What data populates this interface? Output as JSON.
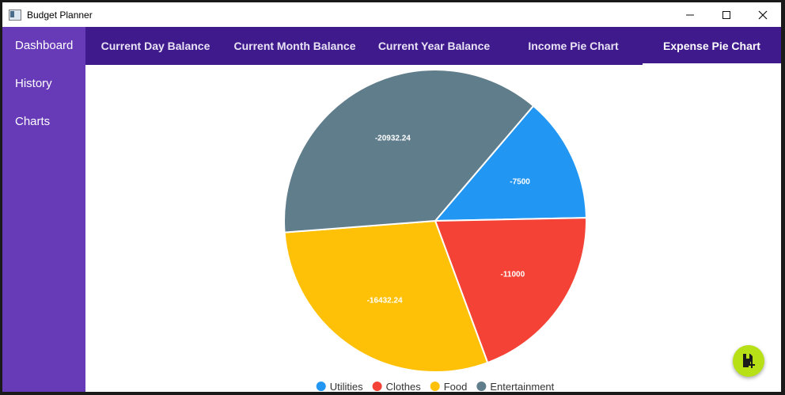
{
  "window": {
    "title": "Budget Planner",
    "minimize_glyph": "—",
    "maximize_glyph": "☐",
    "close_glyph": "✕"
  },
  "sidebar": {
    "items": [
      {
        "label": "Dashboard"
      },
      {
        "label": "History"
      },
      {
        "label": "Charts"
      }
    ]
  },
  "tabs": [
    {
      "label": "Current Day Balance"
    },
    {
      "label": "Current Month Balance"
    },
    {
      "label": "Current Year Balance"
    },
    {
      "label": "Income Pie Chart"
    },
    {
      "label": "Expense Pie Chart",
      "active": true
    }
  ],
  "fab": {
    "icon": "add-document-icon"
  },
  "chart_data": {
    "type": "pie",
    "title": "",
    "slices": [
      {
        "name": "Utilities",
        "value": -7500,
        "color": "#2196f3",
        "label": "-7500"
      },
      {
        "name": "Clothes",
        "value": -11000,
        "color": "#f44336",
        "label": "-11000"
      },
      {
        "name": "Food",
        "value": -16432.24,
        "color": "#ffc107",
        "label": "-16432.24"
      },
      {
        "name": "Entertainment",
        "value": -20932.24,
        "color": "#607d8b",
        "label": "-20932.24"
      }
    ],
    "legend_position": "bottom",
    "start_angle_deg": 49.5
  }
}
